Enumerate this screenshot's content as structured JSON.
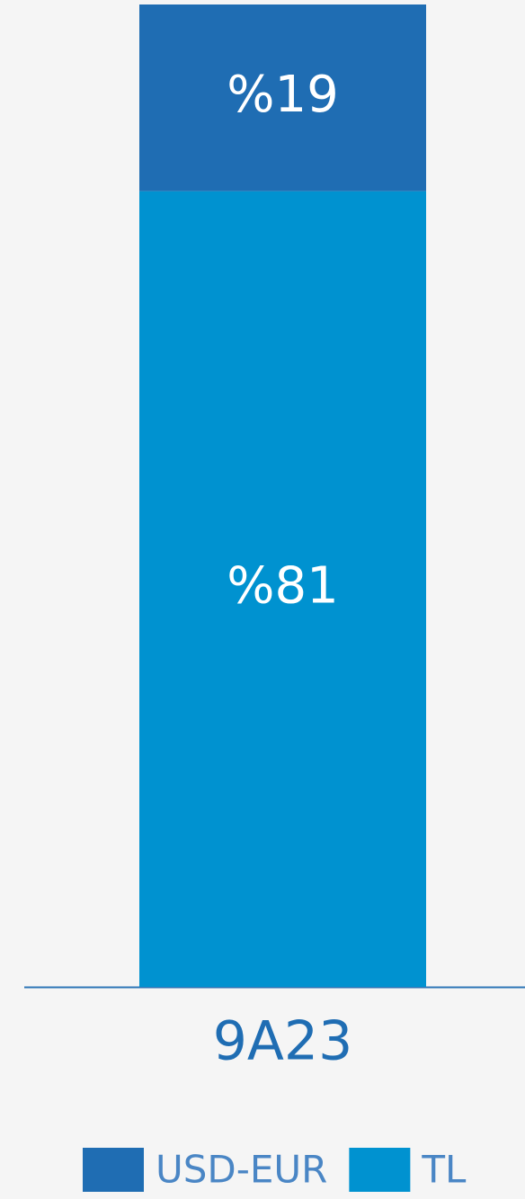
{
  "chart_data": {
    "type": "stacked_bar",
    "categories": [
      "9A23"
    ],
    "series": [
      {
        "name": "USD-EUR",
        "color": "#1f6db3",
        "values": [
          19
        ],
        "value_labels": [
          "%19"
        ]
      },
      {
        "name": "TL",
        "color": "#0092d0",
        "values": [
          81
        ],
        "value_labels": [
          "%81"
        ]
      }
    ],
    "ylim": [
      0,
      100
    ],
    "legend": "bottom"
  }
}
